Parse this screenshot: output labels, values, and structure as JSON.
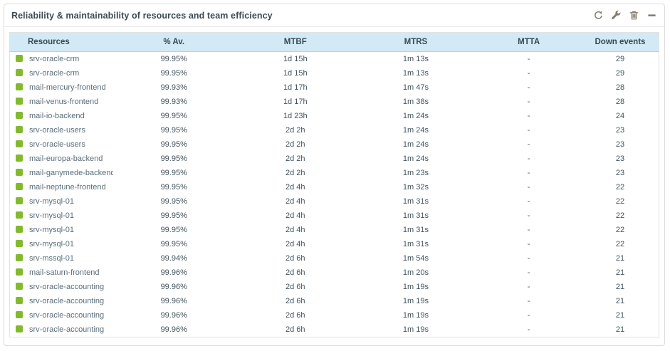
{
  "panel": {
    "title": "Reliability & maintainability of resources and team efficiency",
    "toolbar": {
      "refresh_label": "refresh",
      "config_label": "configure",
      "delete_label": "delete",
      "minimize_label": "minimize"
    }
  },
  "colors": {
    "status_ok": "#82b92e",
    "header_bg": "#d2eaf6",
    "header_text": "#374a53",
    "icon_gray": "#847b6f"
  },
  "table": {
    "columns": [
      "Resources",
      "% Av.",
      "MTBF",
      "MTRS",
      "MTTA",
      "Down events"
    ],
    "rows": [
      {
        "status": "ok",
        "resource": "srv-oracle-crm",
        "availability": "99.95%",
        "mtbf": "1d 15h",
        "mtrs": "1m 13s",
        "mtta": "-",
        "down_events": "29"
      },
      {
        "status": "ok",
        "resource": "srv-oracle-crm",
        "availability": "99.95%",
        "mtbf": "1d 15h",
        "mtrs": "1m 13s",
        "mtta": "-",
        "down_events": "29"
      },
      {
        "status": "ok",
        "resource": "mail-mercury-frontend",
        "availability": "99.93%",
        "mtbf": "1d 17h",
        "mtrs": "1m 47s",
        "mtta": "-",
        "down_events": "28"
      },
      {
        "status": "ok",
        "resource": "mail-venus-frontend",
        "availability": "99.93%",
        "mtbf": "1d 17h",
        "mtrs": "1m 38s",
        "mtta": "-",
        "down_events": "28"
      },
      {
        "status": "ok",
        "resource": "mail-io-backend",
        "availability": "99.95%",
        "mtbf": "1d 23h",
        "mtrs": "1m 24s",
        "mtta": "-",
        "down_events": "24"
      },
      {
        "status": "ok",
        "resource": "srv-oracle-users",
        "availability": "99.95%",
        "mtbf": "2d 2h",
        "mtrs": "1m 24s",
        "mtta": "-",
        "down_events": "23"
      },
      {
        "status": "ok",
        "resource": "srv-oracle-users",
        "availability": "99.95%",
        "mtbf": "2d 2h",
        "mtrs": "1m 24s",
        "mtta": "-",
        "down_events": "23"
      },
      {
        "status": "ok",
        "resource": "mail-europa-backend",
        "availability": "99.95%",
        "mtbf": "2d 2h",
        "mtrs": "1m 24s",
        "mtta": "-",
        "down_events": "23"
      },
      {
        "status": "ok",
        "resource": "mail-ganymede-backend",
        "availability": "99.95%",
        "mtbf": "2d 2h",
        "mtrs": "1m 23s",
        "mtta": "-",
        "down_events": "23"
      },
      {
        "status": "ok",
        "resource": "mail-neptune-frontend",
        "availability": "99.95%",
        "mtbf": "2d 4h",
        "mtrs": "1m 32s",
        "mtta": "-",
        "down_events": "22"
      },
      {
        "status": "ok",
        "resource": "srv-mysql-01",
        "availability": "99.95%",
        "mtbf": "2d 4h",
        "mtrs": "1m 31s",
        "mtta": "-",
        "down_events": "22"
      },
      {
        "status": "ok",
        "resource": "srv-mysql-01",
        "availability": "99.95%",
        "mtbf": "2d 4h",
        "mtrs": "1m 31s",
        "mtta": "-",
        "down_events": "22"
      },
      {
        "status": "ok",
        "resource": "srv-mysql-01",
        "availability": "99.95%",
        "mtbf": "2d 4h",
        "mtrs": "1m 31s",
        "mtta": "-",
        "down_events": "22"
      },
      {
        "status": "ok",
        "resource": "srv-mysql-01",
        "availability": "99.95%",
        "mtbf": "2d 4h",
        "mtrs": "1m 31s",
        "mtta": "-",
        "down_events": "22"
      },
      {
        "status": "ok",
        "resource": "srv-mssql-01",
        "availability": "99.94%",
        "mtbf": "2d 6h",
        "mtrs": "1m 54s",
        "mtta": "-",
        "down_events": "21"
      },
      {
        "status": "ok",
        "resource": "mail-saturn-frontend",
        "availability": "99.96%",
        "mtbf": "2d 6h",
        "mtrs": "1m 20s",
        "mtta": "-",
        "down_events": "21"
      },
      {
        "status": "ok",
        "resource": "srv-oracle-accounting",
        "availability": "99.96%",
        "mtbf": "2d 6h",
        "mtrs": "1m 19s",
        "mtta": "-",
        "down_events": "21"
      },
      {
        "status": "ok",
        "resource": "srv-oracle-accounting",
        "availability": "99.96%",
        "mtbf": "2d 6h",
        "mtrs": "1m 19s",
        "mtta": "-",
        "down_events": "21"
      },
      {
        "status": "ok",
        "resource": "srv-oracle-accounting",
        "availability": "99.96%",
        "mtbf": "2d 6h",
        "mtrs": "1m 19s",
        "mtta": "-",
        "down_events": "21"
      },
      {
        "status": "ok",
        "resource": "srv-oracle-accounting",
        "availability": "99.96%",
        "mtbf": "2d 6h",
        "mtrs": "1m 19s",
        "mtta": "-",
        "down_events": "21"
      }
    ]
  }
}
